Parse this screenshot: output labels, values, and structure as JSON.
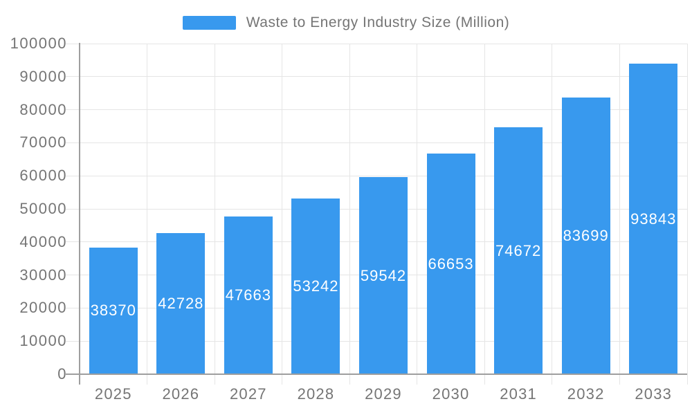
{
  "chart_data": {
    "type": "bar",
    "title": "Waste to Energy Industry Size (Million)",
    "legend": {
      "label": "Waste to Energy Industry Size (Million)",
      "position": "top-center"
    },
    "categories": [
      "2025",
      "2026",
      "2027",
      "2028",
      "2029",
      "2030",
      "2031",
      "2032",
      "2033"
    ],
    "series": [
      {
        "name": "Waste to Energy Industry Size (Million)",
        "values": [
          38370,
          42728,
          47663,
          53242,
          59542,
          66653,
          74672,
          83699,
          93843
        ]
      }
    ],
    "xlabel": "",
    "ylabel": "",
    "ylim": [
      0,
      100000
    ],
    "yticks": [
      0,
      10000,
      20000,
      30000,
      40000,
      50000,
      60000,
      70000,
      80000,
      90000,
      100000
    ],
    "grid": true,
    "data_labels_position": "inside-center",
    "colors": {
      "bar": "#3899EE",
      "grid": "#E5E5E5",
      "axis": "#9E9E9E",
      "tick_label": "#757575",
      "data_label": "#FFFFFF",
      "background": "#FFFFFF"
    }
  }
}
